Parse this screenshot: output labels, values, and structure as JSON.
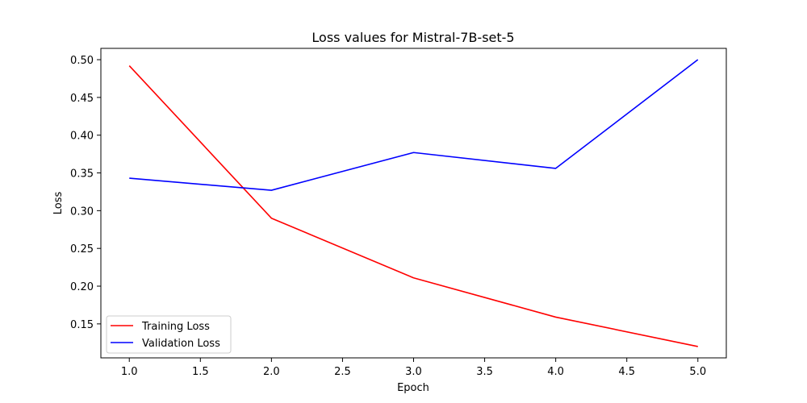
{
  "chart_data": {
    "type": "line",
    "title": "Loss values for Mistral-7B-set-5",
    "xlabel": "Epoch",
    "ylabel": "Loss",
    "xlim": [
      0.8,
      5.2
    ],
    "ylim": [
      0.105,
      0.515
    ],
    "xticks": [
      1.0,
      1.5,
      2.0,
      2.5,
      3.0,
      3.5,
      4.0,
      4.5,
      5.0
    ],
    "xtick_labels": [
      "1.0",
      "1.5",
      "2.0",
      "2.5",
      "3.0",
      "3.5",
      "4.0",
      "4.5",
      "5.0"
    ],
    "yticks": [
      0.15,
      0.2,
      0.25,
      0.3,
      0.35,
      0.4,
      0.45,
      0.5
    ],
    "ytick_labels": [
      "0.15",
      "0.20",
      "0.25",
      "0.30",
      "0.35",
      "0.40",
      "0.45",
      "0.50"
    ],
    "grid": false,
    "legend_position": "lower-left",
    "x": [
      1,
      2,
      3,
      4,
      5
    ],
    "series": [
      {
        "name": "Training Loss",
        "color": "#ff0000",
        "values": [
          0.492,
          0.29,
          0.211,
          0.159,
          0.12
        ]
      },
      {
        "name": "Validation Loss",
        "color": "#0000ff",
        "values": [
          0.343,
          0.327,
          0.377,
          0.356,
          0.5
        ]
      }
    ]
  }
}
